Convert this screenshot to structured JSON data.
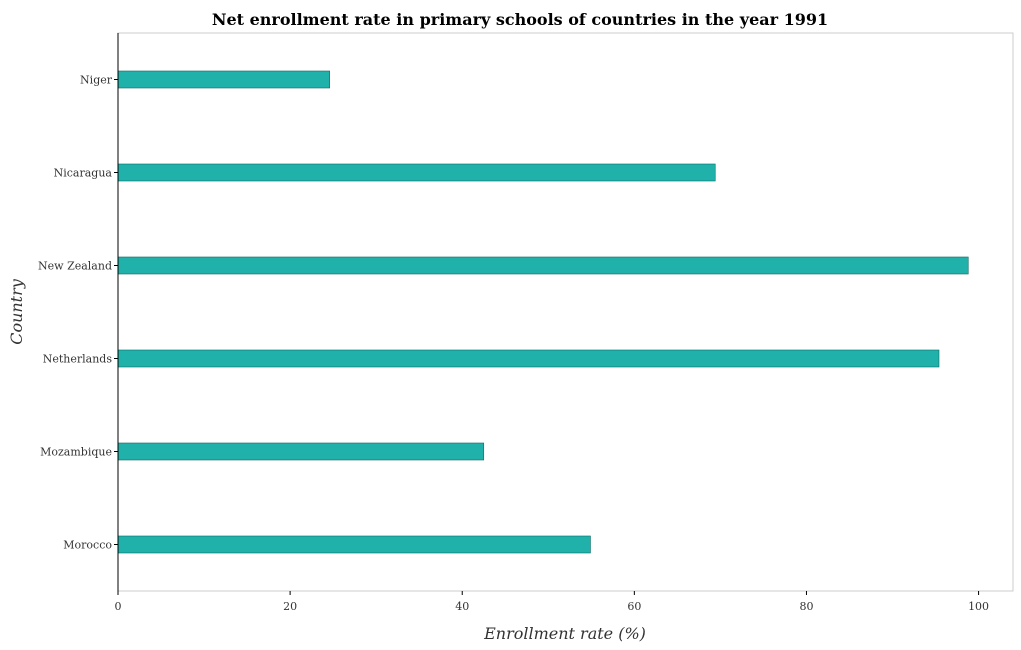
{
  "chart_data": {
    "type": "bar",
    "orientation": "horizontal",
    "title": "Net enrollment rate in primary schools of countries in the year 1991",
    "xlabel": "Enrollment rate (%)",
    "ylabel": "Country",
    "categories": [
      "Morocco",
      "Mozambique",
      "Netherlands",
      "New Zealand",
      "Nicaragua",
      "Niger"
    ],
    "values": [
      54.9,
      42.5,
      95.4,
      98.8,
      69.4,
      24.6
    ],
    "xlim": [
      0,
      104
    ],
    "xticks": [
      0,
      20,
      40,
      60,
      80,
      100
    ],
    "grid": false,
    "bar_color": "#20b2aa",
    "bar_edge_color": "#0d6b66"
  }
}
